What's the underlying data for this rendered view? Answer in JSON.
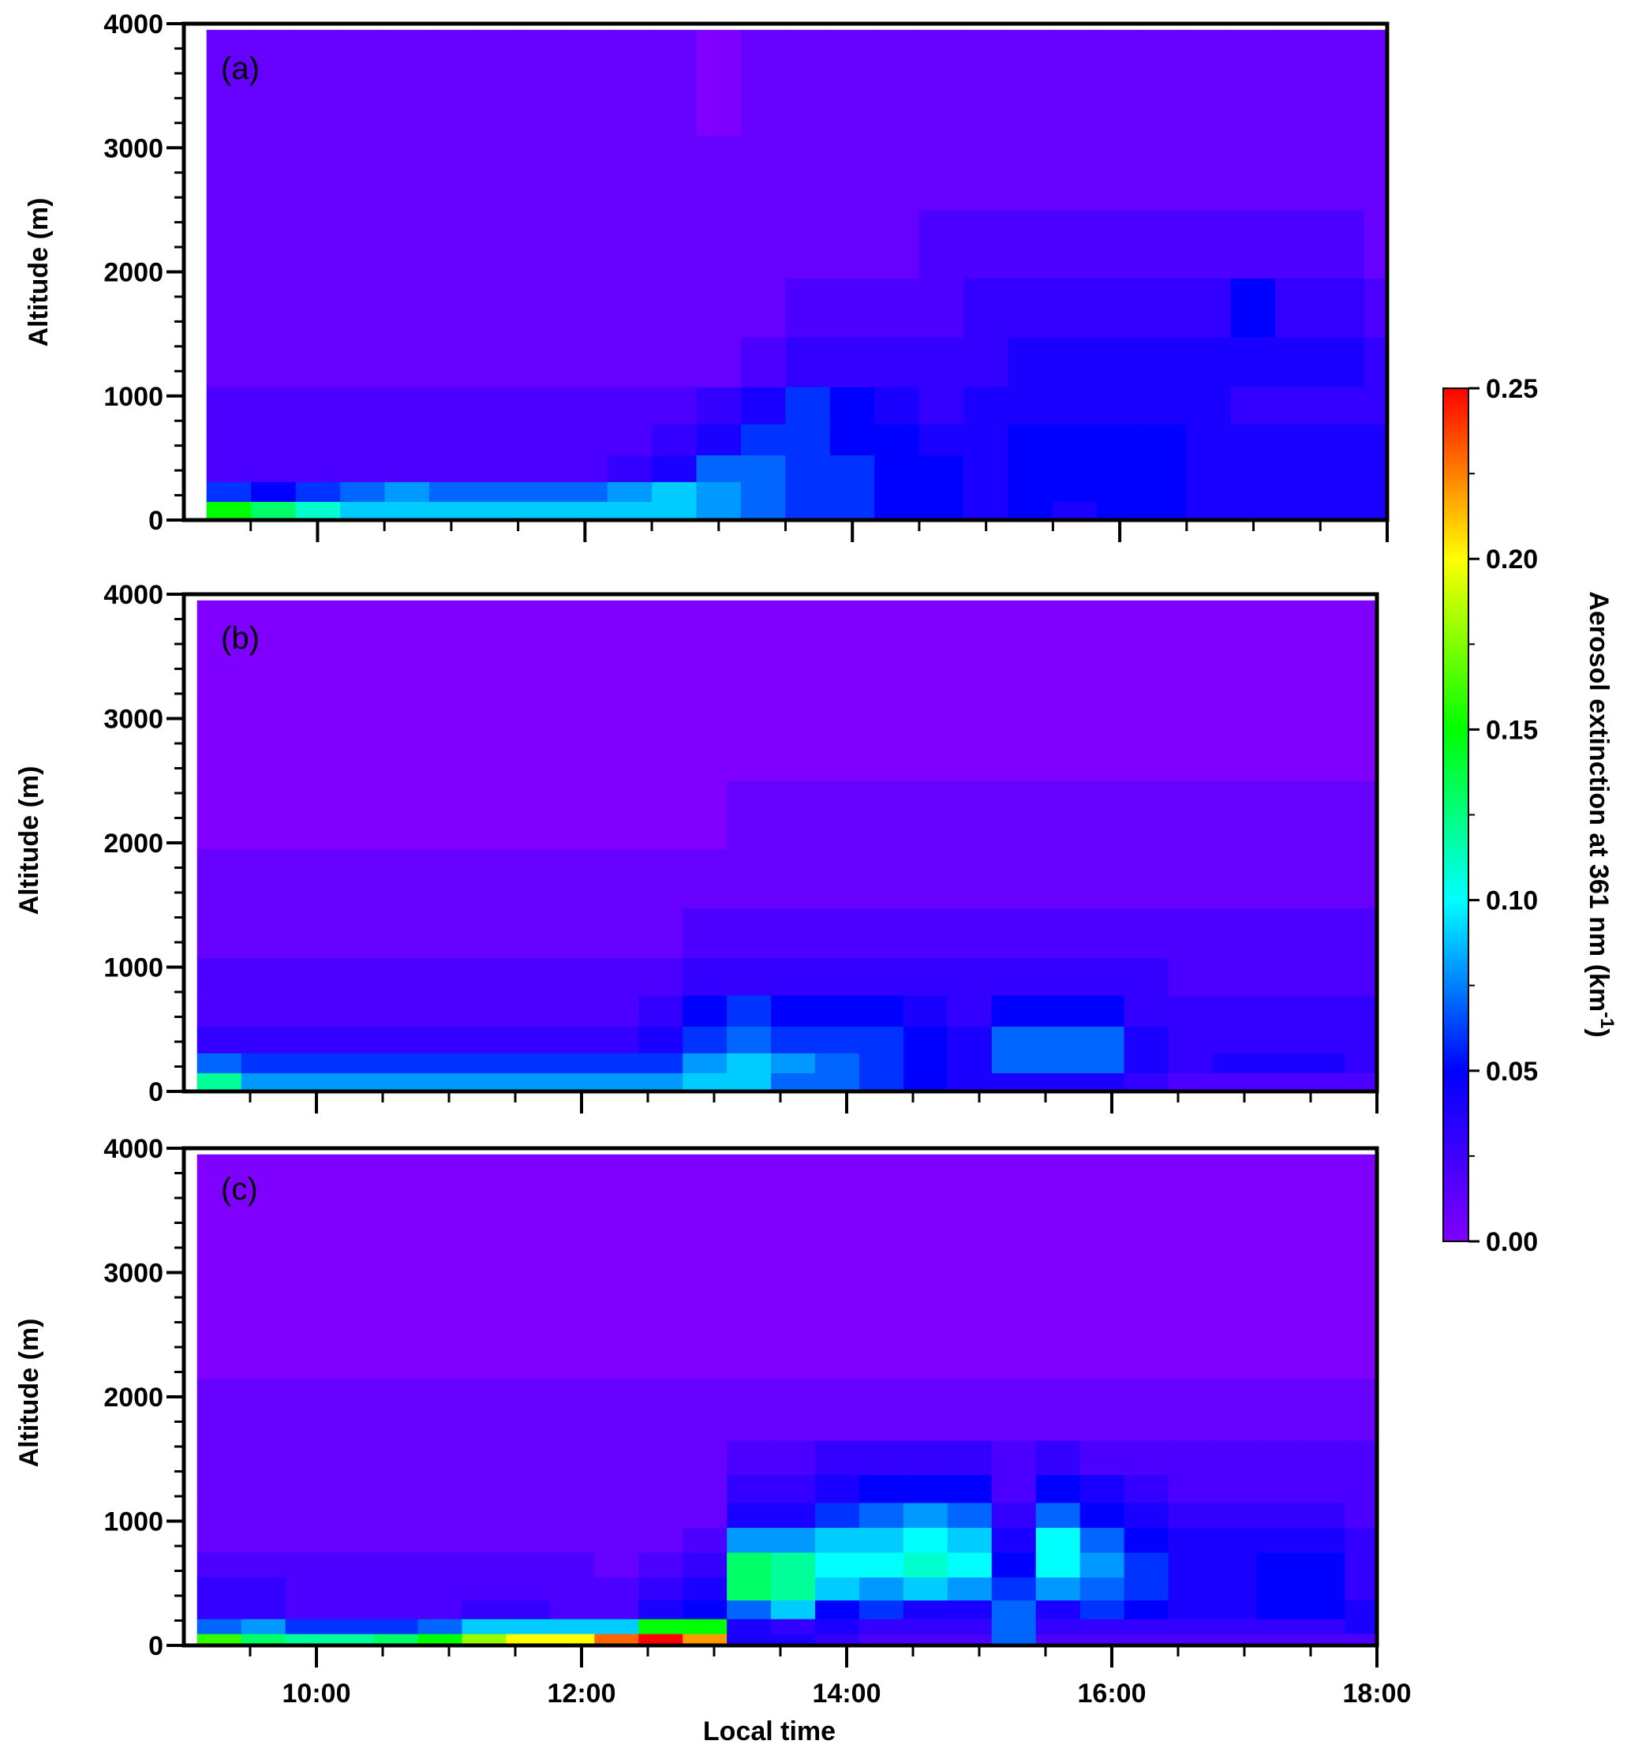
{
  "chart_data": {
    "type": "heatmap",
    "xlabel": "Local time",
    "ylabel": "Altitude (m)",
    "x_tick_labels": [
      "10:00",
      "12:00",
      "14:00",
      "16:00",
      "18:00"
    ],
    "x_ticks_hours": [
      10,
      12,
      14,
      16,
      18
    ],
    "xlim_hours": [
      9,
      18
    ],
    "y_tick_labels": [
      "0",
      "1000",
      "2000",
      "3000",
      "4000"
    ],
    "y_ticks": [
      0,
      1000,
      2000,
      3000,
      4000
    ],
    "ylim": [
      0,
      4000
    ],
    "colorbar": {
      "label": "Aerosol extinction at 361 nm (km",
      "label_sup": "-1",
      "label_end": ")",
      "range": [
        0.0,
        0.25
      ],
      "tick_labels": [
        "0.00",
        "0.05",
        "0.10",
        "0.15",
        "0.20",
        "0.25"
      ],
      "ticks": [
        0.0,
        0.05,
        0.1,
        0.15,
        0.2,
        0.25
      ],
      "colormap": [
        "#7f00ff",
        "#0000ff",
        "#00ffff",
        "#00ff00",
        "#ffff00",
        "#ff0000"
      ]
    },
    "panels": [
      {
        "label": "(a)",
        "start_hour": 9.17,
        "bin_hours": 0.333,
        "altitudes": [
          80,
          220,
          400,
          650,
          900,
          1250,
          1700,
          2200,
          2800,
          3400
        ],
        "values": [
          [
            0.15,
            0.13,
            0.11,
            0.09,
            0.09,
            0.09,
            0.09,
            0.09,
            0.09,
            0.09,
            0.09,
            0.08,
            0.07,
            0.06,
            0.06,
            0.05,
            0.05,
            0.04,
            0.05,
            0.04,
            0.05,
            0.05,
            0.04,
            0.04,
            0.04,
            0.04,
            0.04,
            0.04
          ],
          [
            0.06,
            0.05,
            0.06,
            0.07,
            0.08,
            0.07,
            0.07,
            0.07,
            0.07,
            0.08,
            0.09,
            0.08,
            0.07,
            0.06,
            0.06,
            0.05,
            0.05,
            0.04,
            0.05,
            0.05,
            0.05,
            0.05,
            0.04,
            0.04,
            0.04,
            0.04,
            0.04,
            0.04
          ],
          [
            0.02,
            0.02,
            0.02,
            0.02,
            0.02,
            0.02,
            0.02,
            0.02,
            0.02,
            0.03,
            0.04,
            0.07,
            0.07,
            0.06,
            0.06,
            0.05,
            0.05,
            0.04,
            0.05,
            0.05,
            0.05,
            0.05,
            0.04,
            0.04,
            0.04,
            0.04,
            0.04,
            0.04
          ],
          [
            0.02,
            0.02,
            0.02,
            0.02,
            0.02,
            0.02,
            0.02,
            0.02,
            0.02,
            0.02,
            0.03,
            0.04,
            0.06,
            0.06,
            0.05,
            0.05,
            0.04,
            0.04,
            0.05,
            0.05,
            0.05,
            0.05,
            0.04,
            0.04,
            0.04,
            0.04,
            0.04,
            0.04
          ],
          [
            0.02,
            0.02,
            0.02,
            0.02,
            0.02,
            0.02,
            0.02,
            0.02,
            0.02,
            0.02,
            0.02,
            0.03,
            0.04,
            0.06,
            0.05,
            0.04,
            0.03,
            0.04,
            0.04,
            0.04,
            0.04,
            0.04,
            0.04,
            0.03,
            0.03,
            0.03,
            0.03,
            0.03
          ],
          [
            0.01,
            0.01,
            0.01,
            0.01,
            0.01,
            0.01,
            0.01,
            0.01,
            0.01,
            0.01,
            0.01,
            0.01,
            0.02,
            0.03,
            0.03,
            0.03,
            0.03,
            0.03,
            0.04,
            0.04,
            0.04,
            0.04,
            0.04,
            0.04,
            0.04,
            0.04,
            0.03,
            0.04
          ],
          [
            0.01,
            0.01,
            0.01,
            0.01,
            0.01,
            0.01,
            0.01,
            0.01,
            0.01,
            0.01,
            0.01,
            0.01,
            0.01,
            0.02,
            0.02,
            0.02,
            0.02,
            0.03,
            0.03,
            0.03,
            0.03,
            0.03,
            0.03,
            0.05,
            0.03,
            0.03,
            0.02,
            0.03
          ],
          [
            0.01,
            0.01,
            0.01,
            0.01,
            0.01,
            0.01,
            0.01,
            0.01,
            0.01,
            0.01,
            0.01,
            0.01,
            0.01,
            0.01,
            0.01,
            0.01,
            0.02,
            0.02,
            0.02,
            0.02,
            0.02,
            0.02,
            0.02,
            0.02,
            0.02,
            0.02,
            0.01,
            0.02
          ],
          [
            0.01,
            0.01,
            0.01,
            0.01,
            0.01,
            0.01,
            0.01,
            0.01,
            0.01,
            0.01,
            0.01,
            0.01,
            0.01,
            0.01,
            0.01,
            0.01,
            0.01,
            0.01,
            0.01,
            0.01,
            0.01,
            0.01,
            0.01,
            0.01,
            0.01,
            0.01,
            0.01,
            0.01
          ],
          [
            0.01,
            0.01,
            0.01,
            0.01,
            0.01,
            0.01,
            0.01,
            0.01,
            0.01,
            0.01,
            0.01,
            0.0,
            0.01,
            0.01,
            0.01,
            0.01,
            0.01,
            0.01,
            0.01,
            0.01,
            0.01,
            0.01,
            0.01,
            0.01,
            0.01,
            0.01,
            0.01,
            0.01
          ]
        ]
      },
      {
        "label": "(b)",
        "start_hour": 9.1,
        "bin_hours": 0.333,
        "altitudes": [
          80,
          220,
          400,
          650,
          900,
          1250,
          1700,
          2200,
          2800,
          3400
        ],
        "values": [
          [
            0.12,
            0.08,
            0.08,
            0.08,
            0.08,
            0.08,
            0.08,
            0.08,
            0.08,
            0.08,
            0.08,
            0.09,
            0.09,
            0.07,
            0.07,
            0.06,
            0.05,
            0.04,
            0.04,
            0.04,
            0.04,
            0.03,
            0.02,
            0.02,
            0.02,
            0.02,
            0.02,
            0.06
          ],
          [
            0.07,
            0.06,
            0.06,
            0.06,
            0.06,
            0.06,
            0.06,
            0.06,
            0.06,
            0.06,
            0.06,
            0.08,
            0.09,
            0.08,
            0.07,
            0.06,
            0.05,
            0.04,
            0.07,
            0.07,
            0.07,
            0.04,
            0.03,
            0.04,
            0.04,
            0.04,
            0.03,
            0.05
          ],
          [
            0.03,
            0.03,
            0.03,
            0.03,
            0.03,
            0.03,
            0.03,
            0.03,
            0.03,
            0.03,
            0.04,
            0.06,
            0.07,
            0.06,
            0.06,
            0.06,
            0.05,
            0.04,
            0.07,
            0.07,
            0.07,
            0.04,
            0.03,
            0.03,
            0.03,
            0.03,
            0.03,
            0.03
          ],
          [
            0.02,
            0.02,
            0.02,
            0.02,
            0.02,
            0.02,
            0.02,
            0.02,
            0.02,
            0.02,
            0.03,
            0.05,
            0.06,
            0.05,
            0.05,
            0.05,
            0.04,
            0.03,
            0.05,
            0.05,
            0.05,
            0.03,
            0.03,
            0.03,
            0.03,
            0.03,
            0.03,
            0.03
          ],
          [
            0.02,
            0.02,
            0.02,
            0.02,
            0.02,
            0.02,
            0.02,
            0.02,
            0.02,
            0.02,
            0.02,
            0.03,
            0.03,
            0.03,
            0.03,
            0.03,
            0.03,
            0.03,
            0.03,
            0.03,
            0.03,
            0.03,
            0.02,
            0.02,
            0.02,
            0.02,
            0.02,
            0.02
          ],
          [
            0.01,
            0.01,
            0.01,
            0.01,
            0.01,
            0.01,
            0.01,
            0.01,
            0.01,
            0.01,
            0.01,
            0.02,
            0.02,
            0.02,
            0.02,
            0.02,
            0.02,
            0.02,
            0.02,
            0.02,
            0.02,
            0.02,
            0.02,
            0.02,
            0.02,
            0.02,
            0.02,
            0.02
          ],
          [
            0.01,
            0.01,
            0.01,
            0.01,
            0.01,
            0.01,
            0.01,
            0.01,
            0.01,
            0.01,
            0.01,
            0.01,
            0.01,
            0.01,
            0.01,
            0.01,
            0.01,
            0.01,
            0.01,
            0.01,
            0.01,
            0.01,
            0.01,
            0.01,
            0.01,
            0.01,
            0.01,
            0.01
          ],
          [
            0.0,
            0.0,
            0.0,
            0.0,
            0.0,
            0.0,
            0.0,
            0.0,
            0.0,
            0.0,
            0.0,
            0.0,
            0.01,
            0.01,
            0.01,
            0.01,
            0.01,
            0.01,
            0.01,
            0.01,
            0.01,
            0.01,
            0.01,
            0.01,
            0.01,
            0.01,
            0.01,
            0.01
          ],
          [
            0.0,
            0.0,
            0.0,
            0.0,
            0.0,
            0.0,
            0.0,
            0.0,
            0.0,
            0.0,
            0.0,
            0.0,
            0.0,
            0.0,
            0.0,
            0.0,
            0.0,
            0.0,
            0.0,
            0.0,
            0.0,
            0.0,
            0.0,
            0.0,
            0.0,
            0.0,
            0.0,
            0.0
          ],
          [
            0.0,
            0.0,
            0.0,
            0.0,
            0.0,
            0.0,
            0.0,
            0.0,
            0.0,
            0.0,
            0.0,
            0.0,
            0.0,
            0.0,
            0.0,
            0.0,
            0.0,
            0.0,
            0.0,
            0.0,
            0.0,
            0.0,
            0.0,
            0.0,
            0.0,
            0.0,
            0.0,
            0.0
          ]
        ]
      },
      {
        "label": "(c)",
        "start_hour": 9.1,
        "bin_hours": 0.333,
        "altitudes": [
          40,
          150,
          280,
          450,
          650,
          850,
          1050,
          1250,
          1500,
          1800,
          2500,
          3400
        ],
        "values": [
          [
            0.16,
            0.13,
            0.12,
            0.12,
            0.13,
            0.15,
            0.18,
            0.2,
            0.2,
            0.23,
            0.25,
            0.22,
            0.04,
            0.04,
            0.03,
            0.02,
            0.02,
            0.02,
            0.07,
            0.02,
            0.02,
            0.02,
            0.02,
            0.02,
            0.02,
            0.02,
            0.02,
            0.06
          ],
          [
            0.07,
            0.08,
            0.06,
            0.06,
            0.06,
            0.07,
            0.09,
            0.09,
            0.09,
            0.09,
            0.15,
            0.15,
            0.04,
            0.03,
            0.04,
            0.03,
            0.03,
            0.03,
            0.07,
            0.03,
            0.03,
            0.03,
            0.03,
            0.03,
            0.03,
            0.03,
            0.04,
            0.08
          ],
          [
            0.03,
            0.03,
            0.02,
            0.02,
            0.02,
            0.02,
            0.03,
            0.03,
            0.02,
            0.02,
            0.04,
            0.05,
            0.07,
            0.09,
            0.05,
            0.06,
            0.04,
            0.04,
            0.07,
            0.04,
            0.06,
            0.05,
            0.04,
            0.04,
            0.05,
            0.05,
            0.04,
            0.05
          ],
          [
            0.03,
            0.03,
            0.02,
            0.02,
            0.02,
            0.02,
            0.02,
            0.02,
            0.02,
            0.02,
            0.03,
            0.04,
            0.13,
            0.12,
            0.09,
            0.08,
            0.09,
            0.08,
            0.06,
            0.08,
            0.07,
            0.06,
            0.04,
            0.04,
            0.05,
            0.05,
            0.03,
            0.04
          ],
          [
            0.02,
            0.02,
            0.02,
            0.02,
            0.02,
            0.02,
            0.02,
            0.02,
            0.02,
            0.01,
            0.02,
            0.03,
            0.13,
            0.12,
            0.1,
            0.1,
            0.11,
            0.1,
            0.05,
            0.1,
            0.08,
            0.06,
            0.04,
            0.04,
            0.05,
            0.05,
            0.03,
            0.03
          ],
          [
            0.01,
            0.01,
            0.01,
            0.01,
            0.01,
            0.01,
            0.01,
            0.01,
            0.01,
            0.01,
            0.01,
            0.02,
            0.08,
            0.08,
            0.09,
            0.09,
            0.1,
            0.09,
            0.04,
            0.1,
            0.07,
            0.05,
            0.04,
            0.04,
            0.04,
            0.04,
            0.03,
            0.02
          ],
          [
            0.01,
            0.01,
            0.01,
            0.01,
            0.01,
            0.01,
            0.01,
            0.01,
            0.01,
            0.01,
            0.01,
            0.01,
            0.04,
            0.04,
            0.06,
            0.07,
            0.08,
            0.07,
            0.03,
            0.07,
            0.05,
            0.04,
            0.03,
            0.03,
            0.03,
            0.03,
            0.02,
            0.02
          ],
          [
            0.01,
            0.01,
            0.01,
            0.01,
            0.01,
            0.01,
            0.01,
            0.01,
            0.01,
            0.01,
            0.01,
            0.01,
            0.03,
            0.03,
            0.04,
            0.05,
            0.05,
            0.05,
            0.02,
            0.05,
            0.04,
            0.03,
            0.02,
            0.02,
            0.02,
            0.02,
            0.02,
            0.02
          ],
          [
            0.01,
            0.01,
            0.01,
            0.01,
            0.01,
            0.01,
            0.01,
            0.01,
            0.01,
            0.01,
            0.01,
            0.01,
            0.02,
            0.02,
            0.03,
            0.03,
            0.03,
            0.03,
            0.02,
            0.03,
            0.02,
            0.02,
            0.02,
            0.02,
            0.02,
            0.02,
            0.02,
            0.02
          ],
          [
            0.01,
            0.01,
            0.01,
            0.01,
            0.01,
            0.01,
            0.01,
            0.01,
            0.01,
            0.01,
            0.01,
            0.01,
            0.01,
            0.01,
            0.01,
            0.01,
            0.01,
            0.01,
            0.01,
            0.01,
            0.01,
            0.01,
            0.01,
            0.01,
            0.01,
            0.01,
            0.01,
            0.01
          ],
          [
            0.0,
            0.0,
            0.0,
            0.0,
            0.0,
            0.0,
            0.0,
            0.0,
            0.0,
            0.0,
            0.0,
            0.0,
            0.0,
            0.0,
            0.0,
            0.0,
            0.0,
            0.0,
            0.0,
            0.0,
            0.0,
            0.0,
            0.0,
            0.0,
            0.0,
            0.0,
            0.0,
            0.0
          ],
          [
            0.0,
            0.0,
            0.0,
            0.0,
            0.0,
            0.0,
            0.0,
            0.0,
            0.0,
            0.0,
            0.0,
            0.0,
            0.0,
            0.0,
            0.0,
            0.0,
            0.0,
            0.0,
            0.0,
            0.0,
            0.0,
            0.0,
            0.0,
            0.0,
            0.0,
            0.0,
            0.0,
            0.0
          ]
        ]
      }
    ]
  }
}
